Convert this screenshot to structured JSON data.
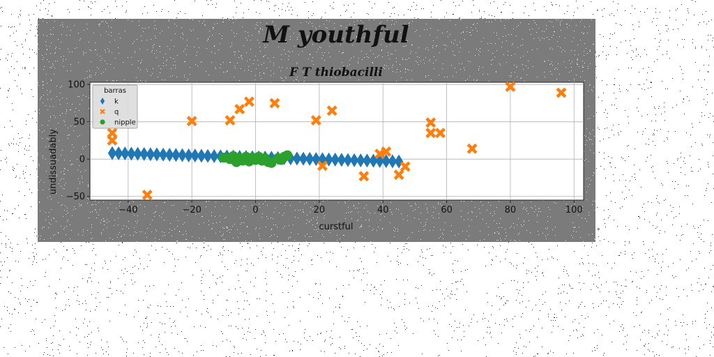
{
  "chart_data": {
    "type": "scatter",
    "title": "M youthful",
    "subtitle": "F T thiobacilli",
    "xlabel": "curstful",
    "ylabel": "undissuadably",
    "xlim": [
      -52,
      103
    ],
    "ylim": [
      -55,
      103
    ],
    "xticks": [
      -40,
      -20,
      0,
      20,
      40,
      60,
      80,
      100
    ],
    "yticks": [
      -50,
      0,
      50,
      100
    ],
    "xtick_labels": [
      "−40",
      "−20",
      "0",
      "20",
      "40",
      "60",
      "80",
      "100"
    ],
    "ytick_labels": [
      "−50",
      "0",
      "50",
      "100"
    ],
    "grid": true,
    "legend": {
      "title": "barras",
      "placement": "top-left"
    },
    "series": [
      {
        "name": "k",
        "marker": "diamond",
        "color": "#1f77b4",
        "x": [
          -45,
          -43,
          -41,
          -39,
          -37,
          -35,
          -33,
          -31,
          -29,
          -27,
          -25,
          -23,
          -21,
          -19,
          -17,
          -15,
          -13,
          -11,
          -9,
          -7,
          -5,
          -3,
          -1,
          1,
          3,
          5,
          7,
          9,
          11,
          13,
          15,
          17,
          19,
          21,
          23,
          25,
          27,
          29,
          31,
          33,
          35,
          37,
          39,
          41,
          43,
          45
        ],
        "y": [
          8,
          7.8,
          7.5,
          7.3,
          7,
          6.8,
          6.5,
          6.3,
          6,
          5.8,
          5.5,
          5.3,
          5,
          4.8,
          4.5,
          4.3,
          4,
          3.8,
          3.5,
          3.3,
          3,
          2.8,
          2.5,
          2.3,
          2,
          1.8,
          1.5,
          1.3,
          1,
          0.8,
          0.5,
          0.3,
          0,
          -0.2,
          -0.5,
          -0.7,
          -1,
          -1.2,
          -1.5,
          -1.7,
          -2,
          -2.2,
          -2.5,
          -2.7,
          -3,
          -3.2
        ]
      },
      {
        "name": "q",
        "marker": "x",
        "color": "#ff7f0e",
        "x": [
          -45,
          -45,
          -34,
          -20,
          -8,
          -5,
          -2,
          6,
          19,
          24,
          21,
          34,
          39,
          41,
          45,
          47,
          55,
          55,
          58,
          68,
          80,
          96
        ],
        "y": [
          35,
          25,
          -48,
          51,
          52,
          67,
          77,
          75,
          52,
          65,
          -9,
          -23,
          7,
          10,
          -21,
          -10,
          49,
          35,
          35,
          14,
          97,
          89
        ]
      },
      {
        "name": "nipple",
        "marker": "circle",
        "color": "#2ca02c",
        "x": [
          -10,
          -8,
          -7,
          -6,
          -5,
          -4,
          -3,
          -2,
          -1,
          0,
          1,
          2,
          3,
          4,
          5,
          7,
          8,
          9,
          10
        ],
        "y": [
          2,
          0,
          4,
          -4,
          1,
          -2,
          3,
          -3,
          2,
          -1,
          3,
          -2,
          1,
          -4,
          -5,
          1,
          -1,
          3,
          5
        ]
      }
    ]
  }
}
